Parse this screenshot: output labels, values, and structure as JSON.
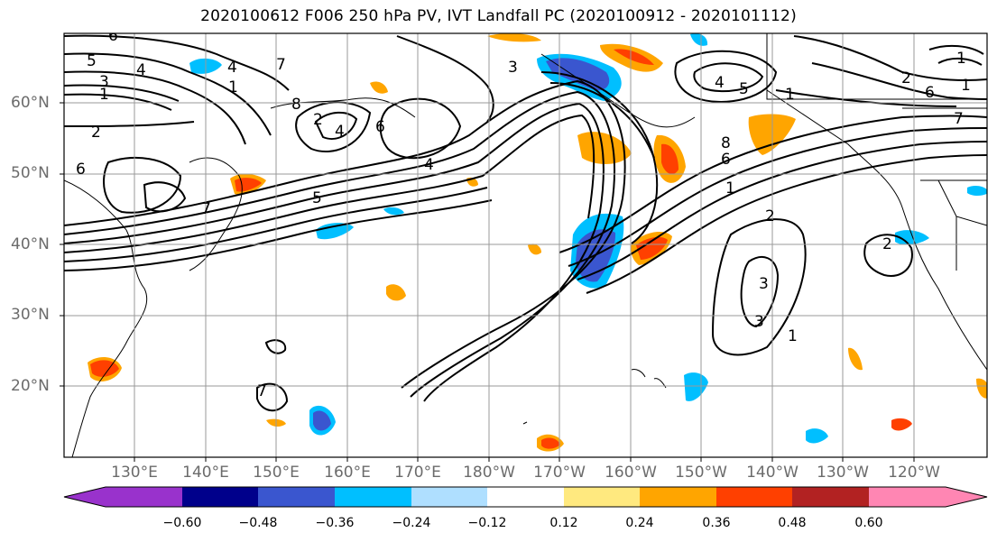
{
  "title": "2020100612 F006 250 hPa PV, IVT Landfall PC (2020100912 - 2020101112)",
  "lat_labels": [
    "60°N",
    "50°N",
    "40°N",
    "30°N",
    "20°N"
  ],
  "lon_labels": [
    "130°E",
    "140°E",
    "150°E",
    "160°E",
    "170°E",
    "180°W",
    "170°W",
    "160°W",
    "150°W",
    "140°W",
    "130°W",
    "120°W"
  ],
  "colorbar": {
    "ticks": [
      "−0.60",
      "−0.48",
      "−0.36",
      "−0.24",
      "−0.12",
      "0.12",
      "0.24",
      "0.36",
      "0.48",
      "0.60"
    ],
    "colors": [
      "#9932cc",
      "#00008b",
      "#3a56cf",
      "#00bfff",
      "#afdfff",
      "#ffffff",
      "#ffe97f",
      "#ffa500",
      "#ff4000",
      "#b22222",
      "#ff86b3"
    ]
  },
  "contour_labels": [
    "6",
    "5",
    "4",
    "3",
    "1",
    "2",
    "6",
    "4",
    "7",
    "1",
    "8",
    "2",
    "4",
    "6",
    "7",
    "3",
    "5",
    "4",
    "5",
    "1",
    "6",
    "7",
    "1",
    "8",
    "6",
    "1",
    "2",
    "3",
    "3",
    "1",
    "2",
    "7",
    "4",
    "1",
    "2"
  ],
  "colors": {
    "contour": "#000000",
    "grid": "#9a9a9a",
    "frame": "#000000"
  }
}
